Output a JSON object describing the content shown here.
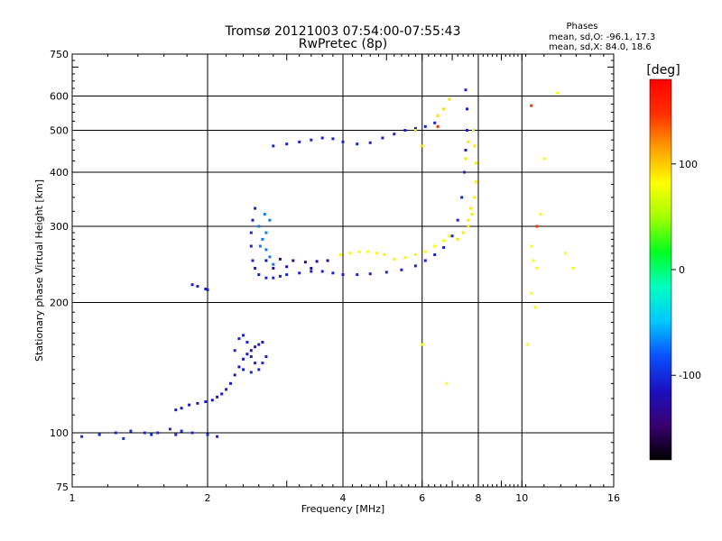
{
  "chart_data": {
    "type": "scatter",
    "title": "Tromsø 20121003 07:54:00-07:55:43",
    "subtitle": "RwPretec (8p)",
    "xlabel": "Frequency [MHz]",
    "ylabel": "Stationary phase Virtual Height [km]",
    "xscale": "log",
    "yscale": "log",
    "xlim": [
      1,
      16
    ],
    "ylim": [
      75,
      750
    ],
    "xticks": [
      1,
      2,
      4,
      6,
      8,
      10,
      16
    ],
    "xtick_labels": [
      "1",
      "2",
      "4",
      "6",
      "8",
      "10",
      "16"
    ],
    "yticks": [
      75,
      100,
      200,
      300,
      400,
      500,
      600,
      750
    ],
    "ytick_labels": [
      "75",
      "100",
      "200",
      "300",
      "400",
      "500",
      "600",
      "750"
    ],
    "grid": true,
    "stats": {
      "heading": "Phases",
      "line_o": "mean, sd,O: -96.1, 17.3",
      "line_x": "mean, sd,X:  84.0, 18.6"
    },
    "colorbar": {
      "label": "[deg]",
      "range": [
        -180,
        180
      ],
      "ticks": [
        100,
        0,
        -100
      ],
      "tick_labels": [
        "100",
        "0",
        "-100"
      ],
      "colormap": [
        "#000000",
        "#3a0070",
        "#1a10c0",
        "#0a50ff",
        "#00c8ff",
        "#00ffc0",
        "#00ff20",
        "#a0ff00",
        "#ffff00",
        "#ffa000",
        "#ff3000",
        "#ff0000"
      ]
    },
    "series": [
      {
        "values": [
          [
            1.05,
            98
          ],
          [
            1.15,
            99
          ],
          [
            1.25,
            100
          ],
          [
            1.35,
            101
          ],
          [
            1.45,
            100
          ],
          [
            1.55,
            100
          ],
          [
            1.65,
            102
          ],
          [
            1.75,
            101
          ],
          [
            1.85,
            100
          ],
          [
            2.0,
            99
          ],
          [
            2.1,
            98
          ],
          [
            1.3,
            97
          ],
          [
            1.5,
            99
          ],
          [
            1.7,
            99
          ]
        ],
        "phase": -100
      },
      {
        "values": [
          [
            1.7,
            113
          ],
          [
            1.75,
            114
          ],
          [
            1.82,
            116
          ],
          [
            1.9,
            117
          ],
          [
            1.98,
            118
          ],
          [
            2.05,
            119
          ],
          [
            2.1,
            121
          ],
          [
            2.15,
            123
          ],
          [
            2.2,
            126
          ],
          [
            2.25,
            130
          ],
          [
            2.3,
            136
          ],
          [
            2.35,
            142
          ],
          [
            2.4,
            148
          ],
          [
            2.45,
            152
          ],
          [
            2.5,
            155
          ],
          [
            2.55,
            158
          ],
          [
            2.6,
            160
          ],
          [
            2.65,
            162
          ]
        ],
        "phase": -110
      },
      {
        "values": [
          [
            2.35,
            165
          ],
          [
            2.4,
            168
          ],
          [
            2.45,
            162
          ],
          [
            2.5,
            150
          ],
          [
            2.55,
            145
          ],
          [
            2.6,
            140
          ],
          [
            2.65,
            145
          ],
          [
            2.7,
            150
          ],
          [
            2.4,
            140
          ],
          [
            2.5,
            138
          ],
          [
            2.3,
            155
          ]
        ],
        "phase": -105
      },
      {
        "values": [
          [
            1.85,
            220
          ],
          [
            1.9,
            218
          ],
          [
            1.98,
            215
          ],
          [
            2.0,
            214
          ]
        ],
        "phase": -105
      },
      {
        "values": [
          [
            2.55,
            330
          ],
          [
            2.52,
            310
          ],
          [
            2.5,
            290
          ],
          [
            2.5,
            270
          ],
          [
            2.52,
            250
          ],
          [
            2.55,
            240
          ],
          [
            2.6,
            232
          ],
          [
            2.7,
            228
          ],
          [
            2.8,
            228
          ],
          [
            2.9,
            230
          ],
          [
            3.0,
            232
          ],
          [
            3.2,
            234
          ],
          [
            3.4,
            236
          ],
          [
            3.6,
            236
          ],
          [
            3.8,
            234
          ],
          [
            4.0,
            232
          ],
          [
            4.3,
            232
          ],
          [
            4.6,
            233
          ],
          [
            5.0,
            235
          ],
          [
            5.4,
            238
          ],
          [
            5.8,
            243
          ],
          [
            6.1,
            250
          ],
          [
            6.4,
            258
          ],
          [
            6.7,
            268
          ],
          [
            7.0,
            285
          ],
          [
            7.2,
            310
          ],
          [
            7.35,
            350
          ],
          [
            7.45,
            400
          ],
          [
            7.5,
            450
          ],
          [
            7.55,
            500
          ],
          [
            7.55,
            560
          ],
          [
            7.5,
            620
          ]
        ],
        "phase": -105
      },
      {
        "values": [
          [
            2.6,
            300
          ],
          [
            2.65,
            280
          ],
          [
            2.7,
            265
          ],
          [
            2.75,
            255
          ],
          [
            2.8,
            245
          ],
          [
            2.7,
            290
          ],
          [
            2.62,
            270
          ],
          [
            2.75,
            310
          ],
          [
            2.68,
            320
          ]
        ],
        "phase": -70
      },
      {
        "values": [
          [
            2.7,
            250
          ],
          [
            2.9,
            252
          ],
          [
            3.1,
            250
          ],
          [
            3.3,
            248
          ],
          [
            3.5,
            249
          ],
          [
            3.7,
            250
          ],
          [
            2.8,
            240
          ],
          [
            3.0,
            242
          ],
          [
            3.4,
            240
          ]
        ],
        "phase": -125
      },
      {
        "values": [
          [
            3.95,
            258
          ],
          [
            4.15,
            260
          ],
          [
            4.35,
            262
          ],
          [
            4.55,
            262
          ],
          [
            4.75,
            260
          ],
          [
            4.95,
            258
          ],
          [
            5.2,
            252
          ],
          [
            5.5,
            254
          ],
          [
            5.8,
            258
          ],
          [
            6.1,
            262
          ],
          [
            6.4,
            270
          ],
          [
            6.7,
            278
          ],
          [
            6.9,
            285
          ]
        ],
        "phase": 85
      },
      {
        "values": [
          [
            7.2,
            280
          ],
          [
            7.4,
            290
          ],
          [
            7.6,
            300
          ],
          [
            7.75,
            320
          ],
          [
            7.85,
            350
          ],
          [
            7.9,
            380
          ],
          [
            7.9,
            420
          ],
          [
            7.85,
            460
          ],
          [
            7.8,
            500
          ],
          [
            7.6,
            470
          ],
          [
            7.5,
            430
          ],
          [
            7.7,
            330
          ],
          [
            7.6,
            310
          ]
        ],
        "phase": 90
      },
      {
        "values": [
          [
            2.8,
            460
          ],
          [
            3.0,
            465
          ],
          [
            3.2,
            470
          ],
          [
            3.4,
            475
          ],
          [
            3.6,
            480
          ],
          [
            3.8,
            478
          ],
          [
            4.0,
            470
          ],
          [
            4.3,
            465
          ],
          [
            4.6,
            468
          ],
          [
            4.9,
            480
          ],
          [
            5.2,
            490
          ],
          [
            5.5,
            500
          ],
          [
            5.8,
            505
          ],
          [
            6.1,
            510
          ],
          [
            6.4,
            520
          ]
        ],
        "phase": -105
      },
      {
        "values": [
          [
            6.0,
            460
          ],
          [
            6.5,
            540
          ],
          [
            6.7,
            560
          ],
          [
            6.9,
            590
          ],
          [
            5.8,
            500
          ]
        ],
        "phase": 95
      },
      {
        "values": [
          [
            10.5,
            270
          ],
          [
            10.6,
            250
          ],
          [
            10.8,
            240
          ],
          [
            11.0,
            320
          ],
          [
            11.2,
            430
          ],
          [
            12.0,
            610
          ],
          [
            12.5,
            260
          ],
          [
            13.0,
            240
          ],
          [
            10.5,
            210
          ],
          [
            10.7,
            195
          ],
          [
            10.3,
            160
          ],
          [
            6.0,
            160
          ],
          [
            6.8,
            130
          ]
        ],
        "phase": 80
      },
      {
        "values": [
          [
            10.5,
            570
          ],
          [
            10.8,
            300
          ],
          [
            6.5,
            510
          ]
        ],
        "phase": 150
      }
    ]
  }
}
